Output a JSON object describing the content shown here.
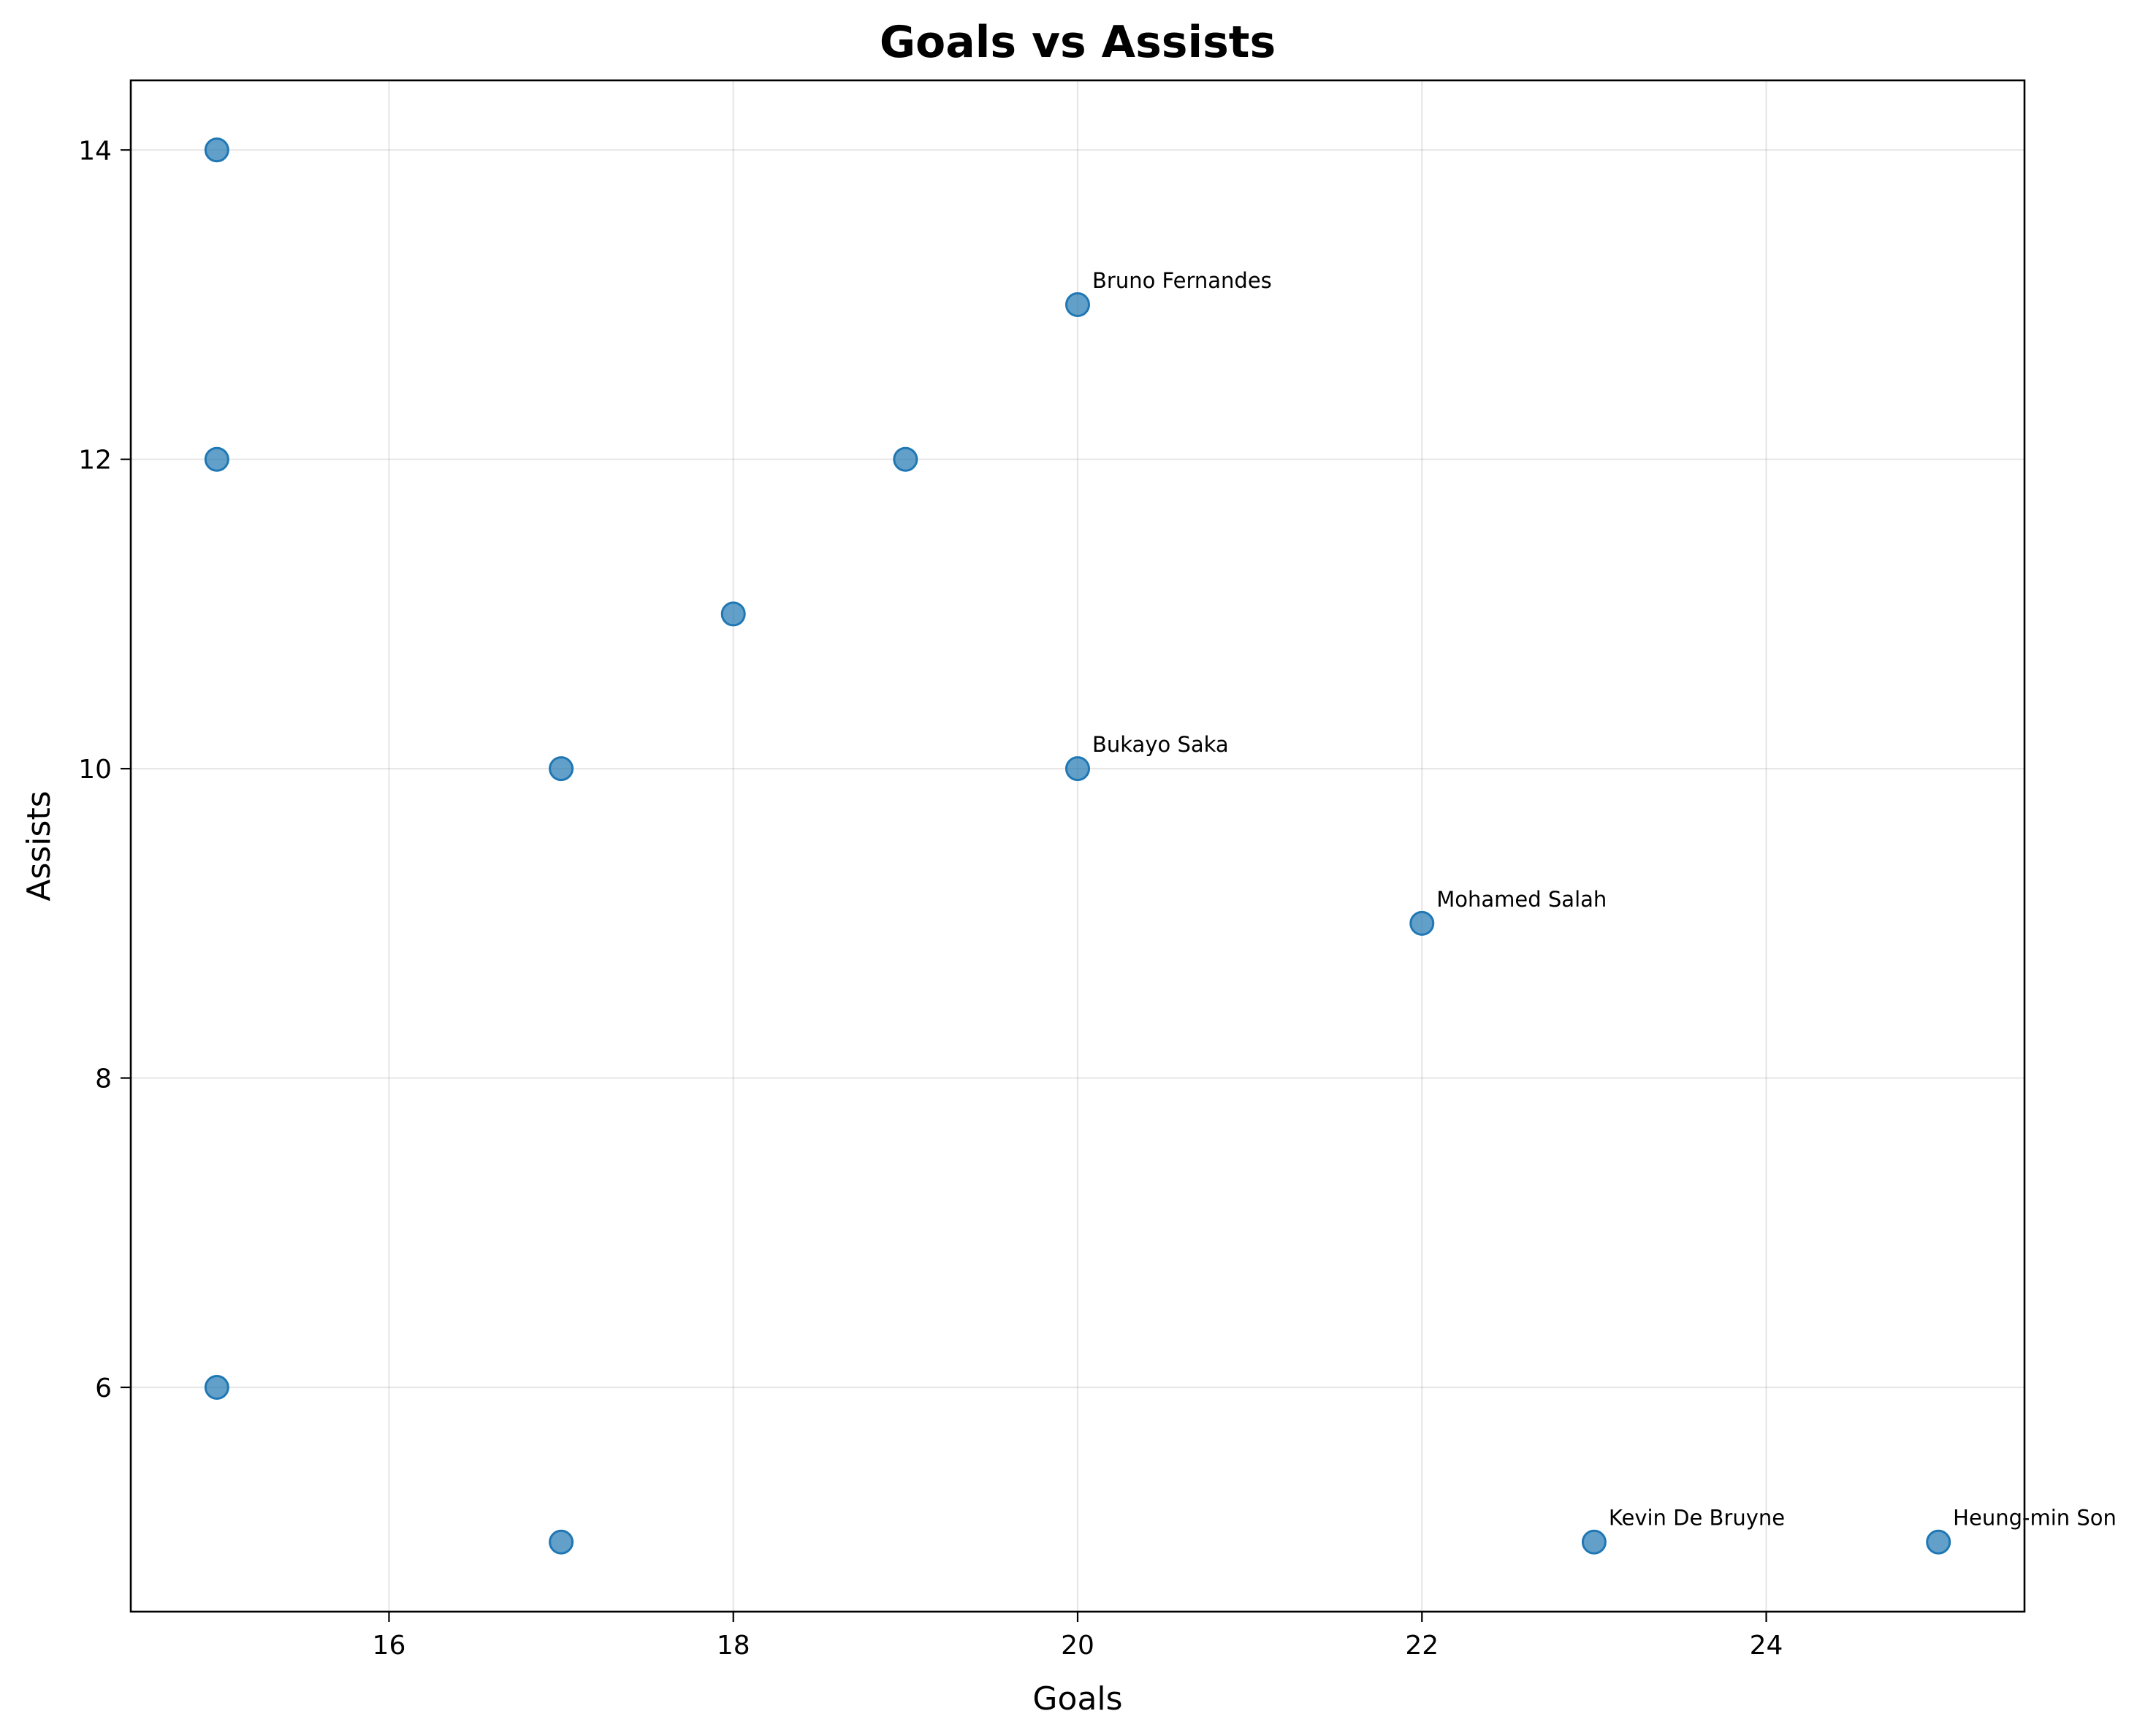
{
  "chart_data": {
    "type": "scatter",
    "title": "Goals vs Assists",
    "xlabel": "Goals",
    "ylabel": "Assists",
    "xlim": [
      14.5,
      25.5
    ],
    "ylim": [
      4.55,
      14.45
    ],
    "xticks": [
      16,
      18,
      20,
      22,
      24
    ],
    "yticks": [
      6,
      8,
      10,
      12,
      14
    ],
    "grid": true,
    "marker_color": "#1f77b4",
    "points": [
      {
        "x": 15,
        "y": 14,
        "label": ""
      },
      {
        "x": 15,
        "y": 12,
        "label": ""
      },
      {
        "x": 15,
        "y": 6,
        "label": ""
      },
      {
        "x": 17,
        "y": 10,
        "label": ""
      },
      {
        "x": 17,
        "y": 5,
        "label": ""
      },
      {
        "x": 18,
        "y": 11,
        "label": ""
      },
      {
        "x": 19,
        "y": 12,
        "label": ""
      },
      {
        "x": 20,
        "y": 13,
        "label": "Bruno Fernandes"
      },
      {
        "x": 20,
        "y": 10,
        "label": "Bukayo Saka"
      },
      {
        "x": 22,
        "y": 9,
        "label": "Mohamed Salah"
      },
      {
        "x": 23,
        "y": 5,
        "label": "Kevin De Bruyne"
      },
      {
        "x": 25,
        "y": 5,
        "label": "Heung-min Son"
      }
    ]
  }
}
